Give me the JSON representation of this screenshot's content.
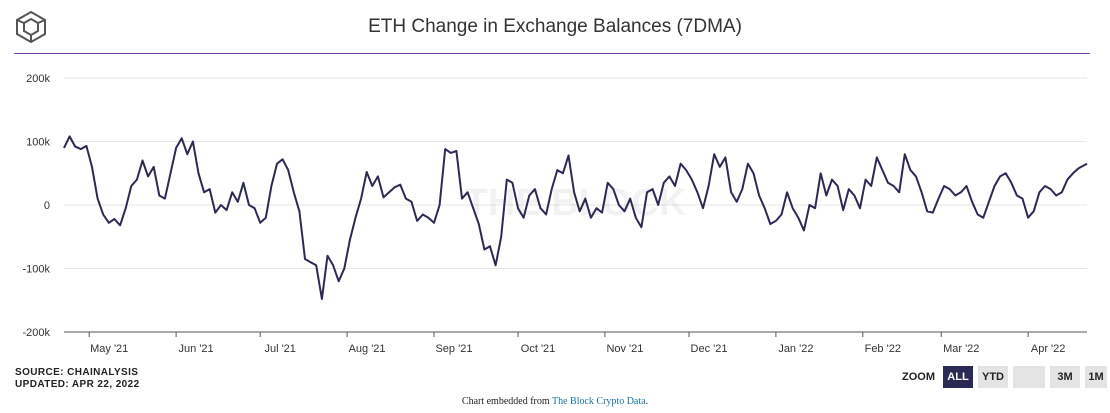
{
  "header": {
    "title": "ETH Change in Exchange Balances (7DMA)"
  },
  "footer": {
    "source_line1": "SOURCE: CHAINALYSIS",
    "source_line2": "UPDATED: APR 22, 2022",
    "zoom_label": "ZOOM",
    "zoom_buttons": [
      "ALL",
      "YTD",
      "",
      "3M",
      "1M"
    ],
    "zoom_active": "ALL",
    "embed_prefix": "Chart embedded from ",
    "embed_link": "The Block Crypto Data",
    "embed_suffix": "."
  },
  "colors": {
    "line": "#2b2a55",
    "accent_rule": "#7b3fa0",
    "grid": "#e6e6e6"
  },
  "chart_data": {
    "type": "line",
    "title": "ETH Change in Exchange Balances (7DMA)",
    "ylim": [
      -200000,
      200000
    ],
    "y_ticks": [
      200000,
      100000,
      0,
      -100000,
      -200000
    ],
    "y_tick_labels": [
      "200k",
      "100k",
      "0",
      "-100k",
      "-200k"
    ],
    "x_ticks": [
      "May '21",
      "Jun '21",
      "Jul '21",
      "Aug '21",
      "Sep '21",
      "Oct '21",
      "Nov '21",
      "Dec '21",
      "Jan '22",
      "Feb '22",
      "Mar '22",
      "Apr '22"
    ],
    "x_range": [
      "2021-04-22",
      "2022-04-22"
    ],
    "watermark": "THE BLOCK",
    "grid": true,
    "series": [
      {
        "points": [
          [
            "2021-04-22",
            90000
          ],
          [
            "2021-04-24",
            108000
          ],
          [
            "2021-04-26",
            92000
          ],
          [
            "2021-04-28",
            88000
          ],
          [
            "2021-04-30",
            93000
          ],
          [
            "2021-05-02",
            60000
          ],
          [
            "2021-05-04",
            10000
          ],
          [
            "2021-05-06",
            -15000
          ],
          [
            "2021-05-08",
            -28000
          ],
          [
            "2021-05-10",
            -22000
          ],
          [
            "2021-05-12",
            -32000
          ],
          [
            "2021-05-14",
            -5000
          ],
          [
            "2021-05-16",
            30000
          ],
          [
            "2021-05-18",
            40000
          ],
          [
            "2021-05-20",
            70000
          ],
          [
            "2021-05-22",
            45000
          ],
          [
            "2021-05-24",
            60000
          ],
          [
            "2021-05-26",
            15000
          ],
          [
            "2021-05-28",
            10000
          ],
          [
            "2021-05-30",
            50000
          ],
          [
            "2021-06-01",
            90000
          ],
          [
            "2021-06-03",
            105000
          ],
          [
            "2021-06-05",
            80000
          ],
          [
            "2021-06-07",
            100000
          ],
          [
            "2021-06-09",
            50000
          ],
          [
            "2021-06-11",
            20000
          ],
          [
            "2021-06-13",
            25000
          ],
          [
            "2021-06-15",
            -12000
          ],
          [
            "2021-06-17",
            0
          ],
          [
            "2021-06-19",
            -8000
          ],
          [
            "2021-06-21",
            20000
          ],
          [
            "2021-06-23",
            5000
          ],
          [
            "2021-06-25",
            35000
          ],
          [
            "2021-06-27",
            0
          ],
          [
            "2021-06-29",
            -5000
          ],
          [
            "2021-07-01",
            -28000
          ],
          [
            "2021-07-03",
            -20000
          ],
          [
            "2021-07-05",
            30000
          ],
          [
            "2021-07-07",
            65000
          ],
          [
            "2021-07-09",
            72000
          ],
          [
            "2021-07-11",
            55000
          ],
          [
            "2021-07-13",
            20000
          ],
          [
            "2021-07-15",
            -10000
          ],
          [
            "2021-07-17",
            -85000
          ],
          [
            "2021-07-19",
            -90000
          ],
          [
            "2021-07-21",
            -95000
          ],
          [
            "2021-07-23",
            -148000
          ],
          [
            "2021-07-25",
            -80000
          ],
          [
            "2021-07-27",
            -95000
          ],
          [
            "2021-07-29",
            -120000
          ],
          [
            "2021-07-31",
            -100000
          ],
          [
            "2021-08-02",
            -55000
          ],
          [
            "2021-08-04",
            -20000
          ],
          [
            "2021-08-06",
            10000
          ],
          [
            "2021-08-08",
            52000
          ],
          [
            "2021-08-10",
            30000
          ],
          [
            "2021-08-12",
            45000
          ],
          [
            "2021-08-14",
            12000
          ],
          [
            "2021-08-16",
            20000
          ],
          [
            "2021-08-18",
            28000
          ],
          [
            "2021-08-20",
            32000
          ],
          [
            "2021-08-22",
            10000
          ],
          [
            "2021-08-24",
            5000
          ],
          [
            "2021-08-26",
            -25000
          ],
          [
            "2021-08-28",
            -15000
          ],
          [
            "2021-08-30",
            -20000
          ],
          [
            "2021-09-01",
            -28000
          ],
          [
            "2021-09-03",
            0
          ],
          [
            "2021-09-05",
            88000
          ],
          [
            "2021-09-07",
            82000
          ],
          [
            "2021-09-09",
            85000
          ],
          [
            "2021-09-11",
            10000
          ],
          [
            "2021-09-13",
            20000
          ],
          [
            "2021-09-15",
            -5000
          ],
          [
            "2021-09-17",
            -30000
          ],
          [
            "2021-09-19",
            -70000
          ],
          [
            "2021-09-21",
            -65000
          ],
          [
            "2021-09-23",
            -95000
          ],
          [
            "2021-09-25",
            -50000
          ],
          [
            "2021-09-27",
            40000
          ],
          [
            "2021-09-29",
            35000
          ],
          [
            "2021-10-01",
            -5000
          ],
          [
            "2021-10-03",
            -20000
          ],
          [
            "2021-10-05",
            15000
          ],
          [
            "2021-10-07",
            25000
          ],
          [
            "2021-10-09",
            -5000
          ],
          [
            "2021-10-11",
            -15000
          ],
          [
            "2021-10-13",
            25000
          ],
          [
            "2021-10-15",
            55000
          ],
          [
            "2021-10-17",
            50000
          ],
          [
            "2021-10-19",
            78000
          ],
          [
            "2021-10-21",
            20000
          ],
          [
            "2021-10-23",
            -10000
          ],
          [
            "2021-10-25",
            10000
          ],
          [
            "2021-10-27",
            -20000
          ],
          [
            "2021-10-29",
            -5000
          ],
          [
            "2021-10-31",
            -12000
          ],
          [
            "2021-11-02",
            35000
          ],
          [
            "2021-11-04",
            25000
          ],
          [
            "2021-11-06",
            0
          ],
          [
            "2021-11-08",
            -10000
          ],
          [
            "2021-11-10",
            10000
          ],
          [
            "2021-11-12",
            -20000
          ],
          [
            "2021-11-14",
            -35000
          ],
          [
            "2021-11-16",
            20000
          ],
          [
            "2021-11-18",
            25000
          ],
          [
            "2021-11-20",
            0
          ],
          [
            "2021-11-22",
            35000
          ],
          [
            "2021-11-24",
            45000
          ],
          [
            "2021-11-26",
            30000
          ],
          [
            "2021-11-28",
            65000
          ],
          [
            "2021-11-30",
            55000
          ],
          [
            "2021-12-02",
            40000
          ],
          [
            "2021-12-04",
            20000
          ],
          [
            "2021-12-06",
            -5000
          ],
          [
            "2021-12-08",
            30000
          ],
          [
            "2021-12-10",
            80000
          ],
          [
            "2021-12-12",
            60000
          ],
          [
            "2021-12-14",
            75000
          ],
          [
            "2021-12-16",
            20000
          ],
          [
            "2021-12-18",
            5000
          ],
          [
            "2021-12-20",
            25000
          ],
          [
            "2021-12-22",
            65000
          ],
          [
            "2021-12-24",
            50000
          ],
          [
            "2021-12-26",
            15000
          ],
          [
            "2021-12-28",
            -5000
          ],
          [
            "2021-12-30",
            -30000
          ],
          [
            "2022-01-01",
            -25000
          ],
          [
            "2022-01-03",
            -15000
          ],
          [
            "2022-01-05",
            20000
          ],
          [
            "2022-01-07",
            -5000
          ],
          [
            "2022-01-09",
            -20000
          ],
          [
            "2022-01-11",
            -40000
          ],
          [
            "2022-01-13",
            0
          ],
          [
            "2022-01-15",
            -5000
          ],
          [
            "2022-01-17",
            50000
          ],
          [
            "2022-01-19",
            15000
          ],
          [
            "2022-01-21",
            40000
          ],
          [
            "2022-01-23",
            30000
          ],
          [
            "2022-01-25",
            -8000
          ],
          [
            "2022-01-27",
            25000
          ],
          [
            "2022-01-29",
            15000
          ],
          [
            "2022-01-31",
            -5000
          ],
          [
            "2022-02-02",
            40000
          ],
          [
            "2022-02-04",
            30000
          ],
          [
            "2022-02-06",
            75000
          ],
          [
            "2022-02-08",
            55000
          ],
          [
            "2022-02-10",
            35000
          ],
          [
            "2022-02-12",
            30000
          ],
          [
            "2022-02-14",
            20000
          ],
          [
            "2022-02-16",
            80000
          ],
          [
            "2022-02-18",
            55000
          ],
          [
            "2022-02-20",
            45000
          ],
          [
            "2022-02-22",
            20000
          ],
          [
            "2022-02-24",
            -10000
          ],
          [
            "2022-02-26",
            -12000
          ],
          [
            "2022-02-28",
            10000
          ],
          [
            "2022-03-02",
            30000
          ],
          [
            "2022-03-04",
            25000
          ],
          [
            "2022-03-06",
            15000
          ],
          [
            "2022-03-08",
            20000
          ],
          [
            "2022-03-10",
            30000
          ],
          [
            "2022-03-12",
            5000
          ],
          [
            "2022-03-14",
            -15000
          ],
          [
            "2022-03-16",
            -20000
          ],
          [
            "2022-03-18",
            5000
          ],
          [
            "2022-03-20",
            30000
          ],
          [
            "2022-03-22",
            45000
          ],
          [
            "2022-03-24",
            50000
          ],
          [
            "2022-03-26",
            35000
          ],
          [
            "2022-03-28",
            15000
          ],
          [
            "2022-03-30",
            10000
          ],
          [
            "2022-04-01",
            -20000
          ],
          [
            "2022-04-03",
            -10000
          ],
          [
            "2022-04-05",
            20000
          ],
          [
            "2022-04-07",
            30000
          ],
          [
            "2022-04-09",
            25000
          ],
          [
            "2022-04-11",
            15000
          ],
          [
            "2022-04-13",
            20000
          ],
          [
            "2022-04-15",
            40000
          ],
          [
            "2022-04-17",
            50000
          ],
          [
            "2022-04-19",
            58000
          ],
          [
            "2022-04-22",
            65000
          ]
        ]
      }
    ]
  }
}
